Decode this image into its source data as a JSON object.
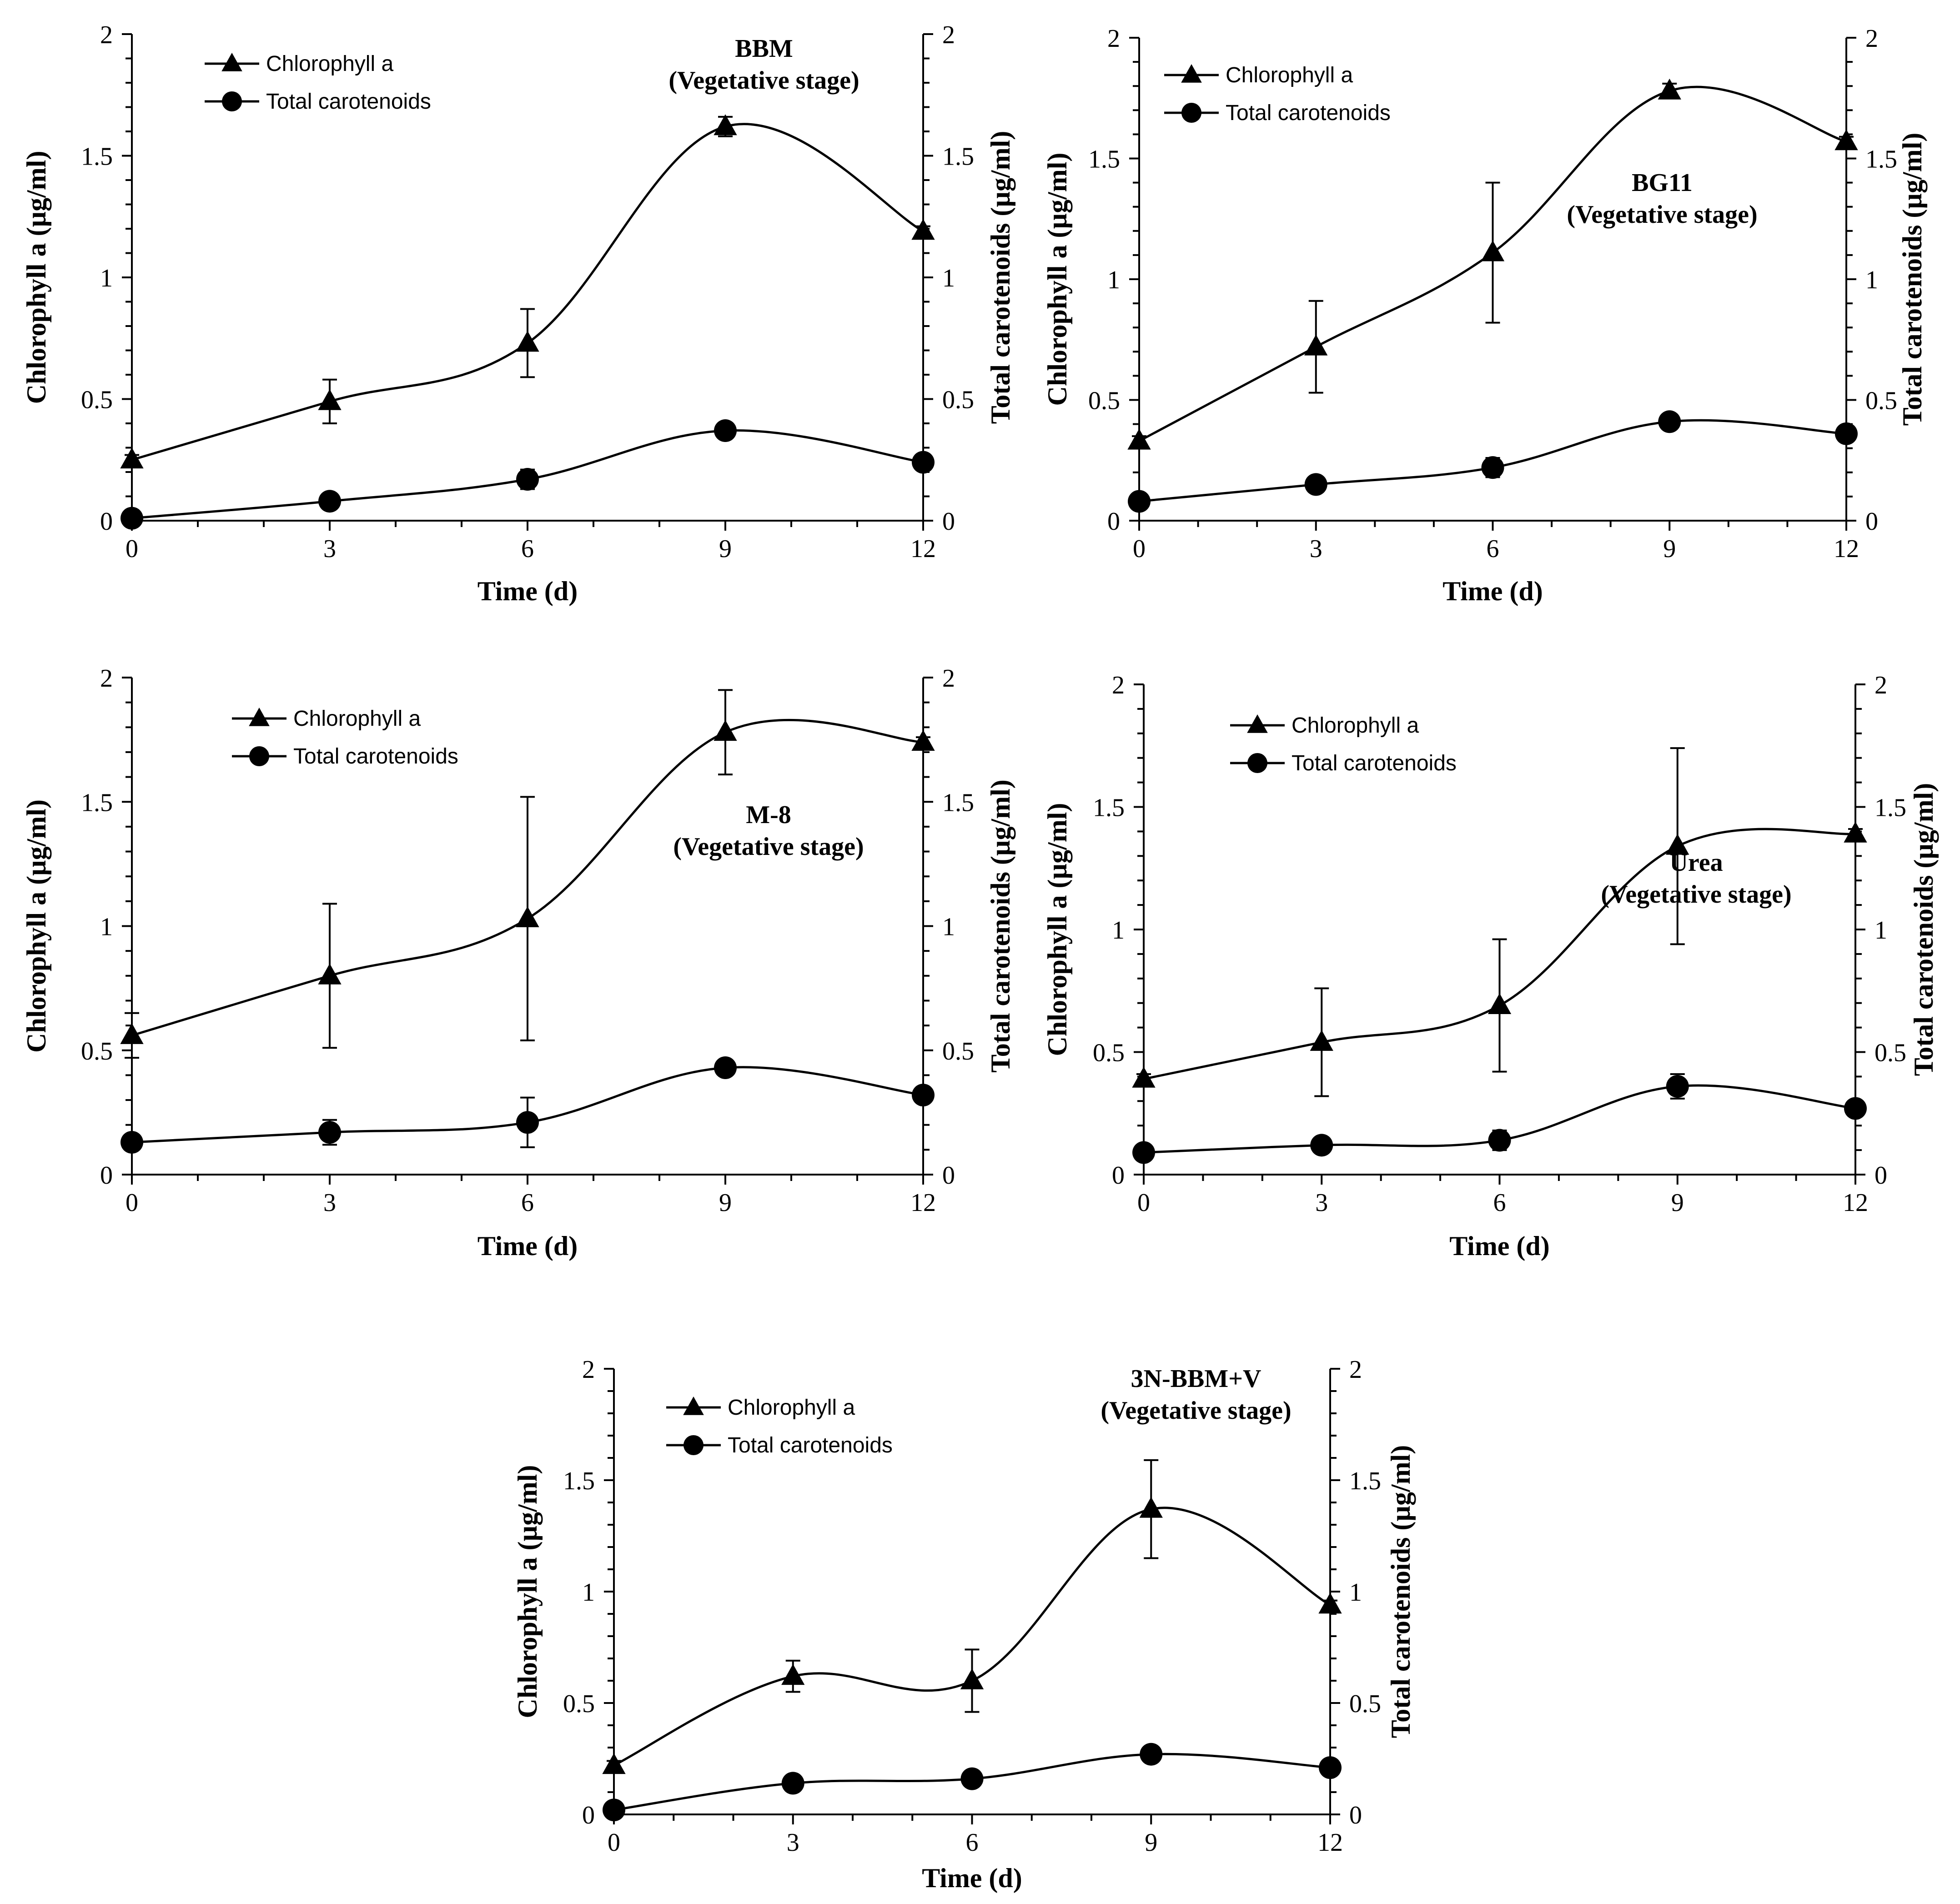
{
  "labels": {
    "xlabel": "Time (d)",
    "ylabel_left": "Chlorophyll a  (µg/ml)",
    "ylabel_right": "Total carotenoids  (µg/ml)",
    "legend_chl": "Chlorophyll a",
    "legend_car": "Total carotenoids"
  },
  "chart_data": [
    {
      "type": "line",
      "annotation": [
        "BBM",
        "(Vegetative stage)"
      ],
      "legend_placement": "top-left",
      "annotation_placement": "top-right",
      "x": [
        0,
        3,
        6,
        9,
        12
      ],
      "xticks": [
        0,
        3,
        6,
        9,
        12
      ],
      "xlim": [
        0,
        12
      ],
      "ylim": [
        0,
        2
      ],
      "yticks": [
        0,
        0.5,
        1,
        1.5,
        2
      ],
      "ytick_labels": [
        "0",
        "0.5",
        "1",
        "1.5",
        "2"
      ],
      "series": [
        {
          "name": "Chlorophyll a",
          "marker": "triangle",
          "values": [
            0.25,
            0.49,
            0.73,
            1.62,
            1.19
          ],
          "errors": [
            0.02,
            0.09,
            0.14,
            0.04,
            0.02
          ]
        },
        {
          "name": "Total carotenoids",
          "marker": "circle",
          "values": [
            0.01,
            0.08,
            0.17,
            0.37,
            0.24
          ],
          "errors": [
            0.01,
            0.01,
            0.04,
            0.01,
            0.01
          ]
        }
      ]
    },
    {
      "type": "line",
      "annotation": [
        "BG11",
        "(Vegetative stage)"
      ],
      "legend_placement": "top-left",
      "annotation_placement": "right",
      "x": [
        0,
        3,
        6,
        9,
        12
      ],
      "xticks": [
        0,
        3,
        6,
        9,
        12
      ],
      "xlim": [
        0,
        12
      ],
      "ylim": [
        0,
        2
      ],
      "yticks": [
        0,
        0.5,
        1,
        1.5,
        2
      ],
      "ytick_labels": [
        "0",
        "0.5",
        "1",
        "1.5",
        "2"
      ],
      "series": [
        {
          "name": "Chlorophyll a",
          "marker": "triangle",
          "values": [
            0.33,
            0.72,
            1.11,
            1.78,
            1.57
          ],
          "errors": [
            0.02,
            0.19,
            0.29,
            0.03,
            0.02
          ]
        },
        {
          "name": "Total carotenoids",
          "marker": "circle",
          "values": [
            0.08,
            0.15,
            0.22,
            0.41,
            0.36
          ],
          "errors": [
            0.01,
            0.01,
            0.04,
            0.01,
            0.01
          ]
        }
      ]
    },
    {
      "type": "line",
      "annotation": [
        "M-8",
        "(Vegetative stage)"
      ],
      "legend_placement": "top-left",
      "annotation_placement": "center-right",
      "x": [
        0,
        3,
        6,
        9,
        12
      ],
      "xticks": [
        0,
        3,
        6,
        9,
        12
      ],
      "xlim": [
        0,
        12
      ],
      "ylim": [
        0,
        2
      ],
      "yticks": [
        0,
        0.5,
        1,
        1.5,
        2
      ],
      "ytick_labels": [
        "0",
        "0.5",
        "1",
        "1.5",
        "2"
      ],
      "series": [
        {
          "name": "Chlorophyll a",
          "marker": "triangle",
          "values": [
            0.56,
            0.8,
            1.03,
            1.78,
            1.74
          ],
          "errors": [
            0.09,
            0.29,
            0.49,
            0.17,
            0.02
          ]
        },
        {
          "name": "Total carotenoids",
          "marker": "circle",
          "values": [
            0.13,
            0.17,
            0.21,
            0.43,
            0.32
          ],
          "errors": [
            0.01,
            0.05,
            0.1,
            0.02,
            0.03
          ]
        }
      ]
    },
    {
      "type": "line",
      "annotation": [
        "Urea",
        "(Vegetative stage)"
      ],
      "legend_placement": "top-left",
      "annotation_placement": "center-right",
      "x": [
        0,
        3,
        6,
        9,
        12
      ],
      "xticks": [
        0,
        3,
        6,
        9,
        12
      ],
      "xlim": [
        0,
        12
      ],
      "ylim": [
        0,
        2
      ],
      "yticks": [
        0,
        0.5,
        1,
        1.5,
        2
      ],
      "ytick_labels": [
        "0",
        "0.5",
        "1",
        "1.5",
        "2"
      ],
      "series": [
        {
          "name": "Chlorophyll a",
          "marker": "triangle",
          "values": [
            0.39,
            0.54,
            0.69,
            1.34,
            1.39
          ],
          "errors": [
            0.02,
            0.22,
            0.27,
            0.4,
            0.02
          ]
        },
        {
          "name": "Total carotenoids",
          "marker": "circle",
          "values": [
            0.09,
            0.12,
            0.14,
            0.36,
            0.27
          ],
          "errors": [
            0.01,
            0.02,
            0.04,
            0.05,
            0.01
          ]
        }
      ]
    },
    {
      "type": "line",
      "annotation": [
        "3N-BBM+V",
        "(Vegetative stage)"
      ],
      "legend_placement": "top-left",
      "annotation_placement": "top-right",
      "x": [
        0,
        3,
        6,
        9,
        12
      ],
      "xticks": [
        0,
        3,
        6,
        9,
        12
      ],
      "xlim": [
        0,
        12
      ],
      "ylim": [
        0,
        2
      ],
      "yticks": [
        0,
        0.5,
        1,
        1.5,
        2
      ],
      "ytick_labels": [
        "0",
        "0.5",
        "1",
        "1.5",
        "2"
      ],
      "series": [
        {
          "name": "Chlorophyll a",
          "marker": "triangle",
          "values": [
            0.22,
            0.62,
            0.6,
            1.37,
            0.94
          ],
          "errors": [
            0.02,
            0.07,
            0.14,
            0.22,
            0.02
          ]
        },
        {
          "name": "Total carotenoids",
          "marker": "circle",
          "values": [
            0.02,
            0.14,
            0.16,
            0.27,
            0.21
          ],
          "errors": [
            0.01,
            0.01,
            0.01,
            0.01,
            0.01
          ]
        }
      ]
    }
  ]
}
